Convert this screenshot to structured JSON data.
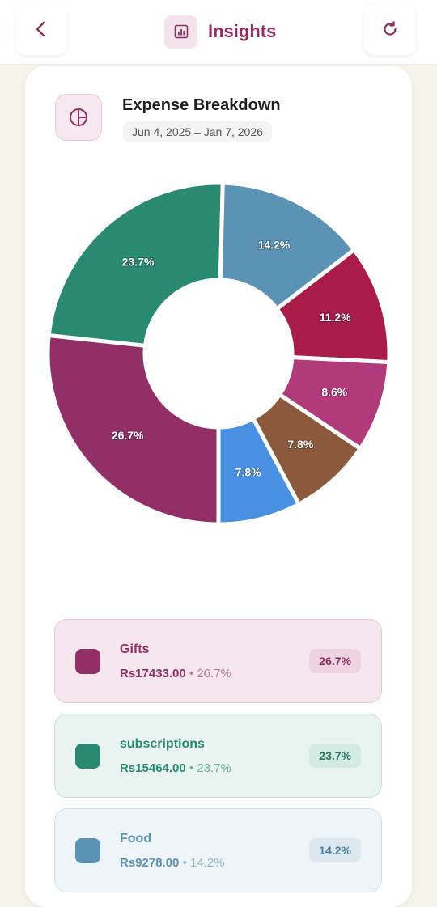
{
  "header": {
    "title": "Insights",
    "back_icon": "chevron-left-icon",
    "title_icon": "bar-chart-icon",
    "refresh_icon": "refresh-icon"
  },
  "card": {
    "title": "Expense Breakdown",
    "date_range": "Jun 4, 2025 – Jan 7, 2026",
    "icon": "pie-chart-icon"
  },
  "chart_data": {
    "type": "pie",
    "variant": "donut",
    "title": "",
    "slices": [
      {
        "label": "Gifts",
        "value": 26.7,
        "display": "26.7%",
        "color": "#922f66"
      },
      {
        "label": "subscriptions",
        "value": 23.7,
        "display": "23.7%",
        "color": "#2a8a71"
      },
      {
        "label": "Food",
        "value": 14.2,
        "display": "14.2%",
        "color": "#5a93b4"
      },
      {
        "label": "",
        "value": 11.2,
        "display": "11.2%",
        "color": "#a81b4b"
      },
      {
        "label": "",
        "value": 8.6,
        "display": "8.6%",
        "color": "#b03a7c"
      },
      {
        "label": "",
        "value": 7.8,
        "display": "7.8%",
        "color": "#8b5a3c"
      },
      {
        "label": "",
        "value": 7.8,
        "display": "7.8%",
        "color": "#4a90e2"
      }
    ]
  },
  "legend": [
    {
      "name": "Gifts",
      "amount": "Rs17433.00",
      "pct": "26.7%",
      "pct_suffix": " • 26.7%",
      "color": "#922f66",
      "bg": "#f6e6ee",
      "border": "#e6c6d6",
      "pill_bg": "#efd3e1",
      "pill_color": "#8e2f64",
      "sub_color": "#b87a9e"
    },
    {
      "name": "subscriptions",
      "amount": "Rs15464.00",
      "pct": "23.7%",
      "pct_suffix": " • 23.7%",
      "color": "#2a8a71",
      "bg": "#e9f4f0",
      "border": "#c4e2d7",
      "pill_bg": "#d4ebe3",
      "pill_color": "#237a63",
      "sub_color": "#6ab19c"
    },
    {
      "name": "Food",
      "amount": "Rs9278.00",
      "pct": "14.2%",
      "pct_suffix": " • 14.2%",
      "color": "#5a93b4",
      "bg": "#eef4f8",
      "border": "#cfe0ea",
      "pill_bg": "#dbe8f0",
      "pill_color": "#4a7fa0",
      "sub_color": "#8fb2c8"
    }
  ]
}
